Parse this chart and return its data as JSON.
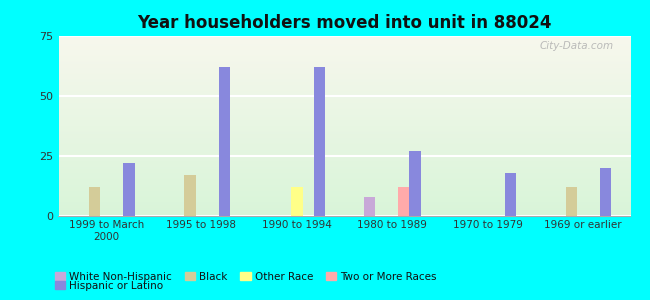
{
  "title": "Year householders moved into unit in 88024",
  "background_color": "#00FFFF",
  "categories": [
    "1999 to March\n2000",
    "1995 to 1998",
    "1990 to 1994",
    "1980 to 1989",
    "1970 to 1979",
    "1969 or earlier"
  ],
  "series": {
    "White Non-Hispanic": {
      "color": "#c8a8d8",
      "values": [
        0,
        0,
        0,
        8,
        0,
        0
      ]
    },
    "Black": {
      "color": "#d4cc99",
      "values": [
        12,
        17,
        0,
        0,
        0,
        12
      ]
    },
    "Other Race": {
      "color": "#ffff88",
      "values": [
        0,
        0,
        12,
        0,
        0,
        0
      ]
    },
    "Two or More Races": {
      "color": "#ffaaaa",
      "values": [
        0,
        0,
        0,
        12,
        0,
        0
      ]
    },
    "Hispanic or Latino": {
      "color": "#8888dd",
      "values": [
        22,
        62,
        62,
        27,
        18,
        20
      ]
    }
  },
  "ylim": [
    0,
    75
  ],
  "yticks": [
    0,
    25,
    50,
    75
  ],
  "watermark": "City-Data.com",
  "legend_order": [
    "White Non-Hispanic",
    "Black",
    "Other Race",
    "Two or More Races",
    "Hispanic or Latino"
  ]
}
